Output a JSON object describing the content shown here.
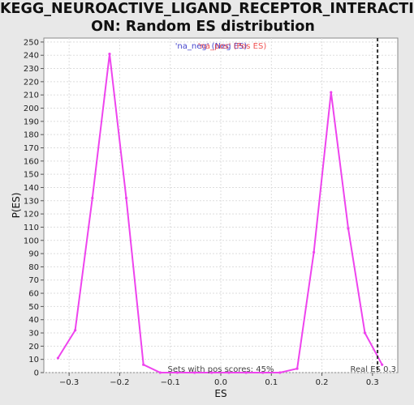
{
  "title": "KEGG_NEUROACTIVE_LIGAND_RECEPTOR_INTERACTI\nON: Random ES distribution",
  "colors": {
    "background": "#e8e8e8",
    "plot_bg": "#ffffff",
    "line": "#ee44ee",
    "real_es_line": "#333333",
    "legend_neg": "#4444cc",
    "legend_pos": "#ee3333",
    "grid": "#dddddd"
  },
  "legend": {
    "neg": "'na_neg' (Neg ES)",
    "pos": "'na_pos' (Pos ES)"
  },
  "annotations": {
    "pos_scores": "Sets with pos scores: 45%",
    "real_es": "Real ES 0.3"
  },
  "chart_data": {
    "type": "line",
    "title": "KEGG_NEUROACTIVE_LIGAND_RECEPTOR_INTERACTION: Random ES distribution",
    "xlabel": "ES",
    "ylabel": "P(ES)",
    "xlim": [
      -0.35,
      0.35
    ],
    "ylim": [
      0,
      253
    ],
    "xticks": [
      -0.3,
      -0.2,
      -0.1,
      0.0,
      0.1,
      0.2,
      0.3
    ],
    "xtick_labels": [
      "−0.3",
      "−0.2",
      "−0.1",
      "0.0",
      "0.1",
      "0.2",
      "0.3"
    ],
    "yticks": [
      0,
      10,
      20,
      30,
      40,
      50,
      60,
      70,
      80,
      90,
      100,
      110,
      120,
      130,
      140,
      150,
      160,
      170,
      180,
      190,
      200,
      210,
      220,
      230,
      240,
      250
    ],
    "grid": true,
    "legend_position": "top-center",
    "series": [
      {
        "values_x": [
          -0.322,
          -0.288,
          -0.254,
          -0.22,
          -0.187,
          -0.153,
          -0.12,
          -0.086,
          -0.052,
          -0.018,
          0.016,
          0.05,
          0.083,
          0.117,
          0.151,
          0.184,
          0.218,
          0.252,
          0.285,
          0.319
        ],
        "values_y": [
          11,
          32,
          132,
          241,
          132,
          6,
          0,
          0,
          0,
          0,
          0,
          0,
          0,
          0,
          3,
          91,
          212,
          109,
          30,
          6
        ]
      }
    ],
    "real_es": 0.31
  }
}
